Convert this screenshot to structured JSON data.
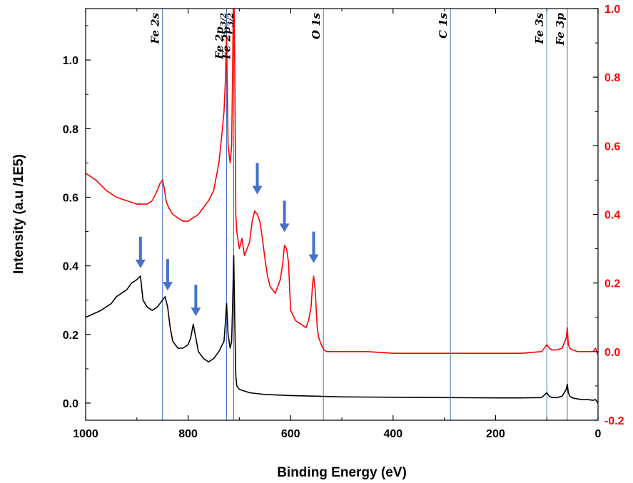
{
  "chart_data": {
    "type": "line",
    "xlabel": "Binding Energy (eV)",
    "ylabel": "Intensity (a.u /1E5)",
    "xlim": [
      1000,
      0
    ],
    "x_reversed": true,
    "ylim_left": [
      -0.05,
      1.15
    ],
    "ylim_right": [
      -0.2,
      1.0
    ],
    "x_ticks": [
      "1000",
      "800",
      "600",
      "400",
      "200",
      "0"
    ],
    "y_ticks_left": [
      "0.0",
      "0.2",
      "0.4",
      "0.6",
      "0.8",
      "1.0"
    ],
    "y_ticks_right": [
      "-0.2",
      "0.0",
      "0.2",
      "0.4",
      "0.6",
      "0.8",
      "1.0"
    ],
    "peak_labels": [
      {
        "text": "Fe 2s",
        "x": 850
      },
      {
        "text": "Fe 2p3/2",
        "x": 725
      },
      {
        "text": "Fe 2p3/2",
        "x": 711
      },
      {
        "text": "O 1s",
        "x": 536
      },
      {
        "text": "C 1s",
        "x": 288
      },
      {
        "text": "Fe 3s",
        "x": 100
      },
      {
        "text": "Fe 3p",
        "x": 60
      }
    ],
    "arrows": [
      {
        "axis": "left",
        "x": 893,
        "y": 0.385
      },
      {
        "axis": "left",
        "x": 840,
        "y": 0.32
      },
      {
        "axis": "left",
        "x": 785,
        "y": 0.245
      },
      {
        "axis": "right",
        "x": 665,
        "y": 0.45
      },
      {
        "axis": "right",
        "x": 612,
        "y": 0.34
      },
      {
        "axis": "right",
        "x": 555,
        "y": 0.25
      }
    ],
    "series": [
      {
        "axis": "left",
        "color": "#000000",
        "x": [
          1000,
          970,
          950,
          940,
          930,
          920,
          910,
          900,
          893,
          888,
          880,
          870,
          860,
          850,
          845,
          840,
          835,
          830,
          820,
          810,
          800,
          795,
          790,
          785,
          780,
          770,
          760,
          750,
          740,
          730,
          727,
          725,
          722,
          718,
          715,
          713,
          711,
          709,
          707,
          705,
          700,
          690,
          680,
          650,
          600,
          550,
          500,
          400,
          300,
          200,
          150,
          110,
          100,
          95,
          90,
          80,
          70,
          62,
          60,
          58,
          55,
          50,
          40,
          30,
          20,
          10,
          5,
          0
        ],
        "y": [
          0.25,
          0.27,
          0.29,
          0.31,
          0.32,
          0.33,
          0.35,
          0.36,
          0.37,
          0.3,
          0.28,
          0.27,
          0.28,
          0.3,
          0.31,
          0.28,
          0.22,
          0.18,
          0.16,
          0.16,
          0.17,
          0.19,
          0.23,
          0.19,
          0.15,
          0.13,
          0.12,
          0.13,
          0.15,
          0.18,
          0.24,
          0.29,
          0.2,
          0.16,
          0.18,
          0.3,
          0.43,
          0.25,
          0.08,
          0.05,
          0.04,
          0.035,
          0.03,
          0.025,
          0.022,
          0.02,
          0.018,
          0.017,
          0.016,
          0.015,
          0.015,
          0.016,
          0.03,
          0.02,
          0.016,
          0.016,
          0.02,
          0.04,
          0.055,
          0.03,
          0.02,
          0.015,
          0.012,
          0.01,
          0.01,
          0.008,
          0.01,
          0.0
        ]
      },
      {
        "axis": "right",
        "color": "#ff0000",
        "x": [
          1000,
          980,
          960,
          940,
          920,
          900,
          880,
          870,
          860,
          855,
          850,
          847,
          843,
          838,
          830,
          820,
          810,
          800,
          790,
          780,
          770,
          760,
          750,
          740,
          735,
          730,
          727,
          725,
          722,
          718,
          715,
          713,
          711,
          709,
          707,
          705,
          700,
          695,
          690,
          680,
          675,
          670,
          665,
          660,
          655,
          650,
          645,
          640,
          630,
          625,
          620,
          615,
          612,
          608,
          604,
          600,
          590,
          580,
          570,
          565,
          560,
          557,
          555,
          552,
          548,
          545,
          540,
          535,
          530,
          500,
          450,
          400,
          350,
          300,
          250,
          200,
          150,
          110,
          100,
          95,
          90,
          80,
          70,
          62,
          60,
          58,
          55,
          50,
          40,
          30,
          20,
          10,
          5,
          0
        ],
        "y": [
          0.52,
          0.5,
          0.47,
          0.45,
          0.44,
          0.43,
          0.43,
          0.44,
          0.47,
          0.49,
          0.5,
          0.48,
          0.44,
          0.42,
          0.4,
          0.39,
          0.38,
          0.38,
          0.39,
          0.4,
          0.42,
          0.44,
          0.47,
          0.55,
          0.62,
          0.7,
          0.8,
          0.92,
          0.6,
          0.55,
          0.6,
          0.85,
          1.1,
          0.85,
          0.4,
          0.35,
          0.3,
          0.33,
          0.28,
          0.32,
          0.38,
          0.41,
          0.4,
          0.38,
          0.33,
          0.27,
          0.22,
          0.19,
          0.17,
          0.19,
          0.21,
          0.26,
          0.31,
          0.3,
          0.26,
          0.12,
          0.09,
          0.08,
          0.07,
          0.09,
          0.13,
          0.2,
          0.22,
          0.18,
          0.07,
          0.04,
          0.02,
          0.005,
          0.0,
          0.0,
          0.0,
          -0.005,
          -0.005,
          -0.005,
          -0.005,
          -0.005,
          -0.005,
          0.0,
          0.02,
          0.01,
          0.005,
          0.005,
          0.01,
          0.04,
          0.07,
          0.02,
          0.01,
          0.005,
          0.0,
          0.0,
          0.0,
          0.0,
          0.01,
          -0.01
        ]
      }
    ],
    "colors": {
      "left_series": "#000000",
      "right_series": "#ff0000",
      "right_axis": "#ff0000",
      "reference_lines": "#4472c4",
      "arrows": "#4472c4"
    }
  }
}
